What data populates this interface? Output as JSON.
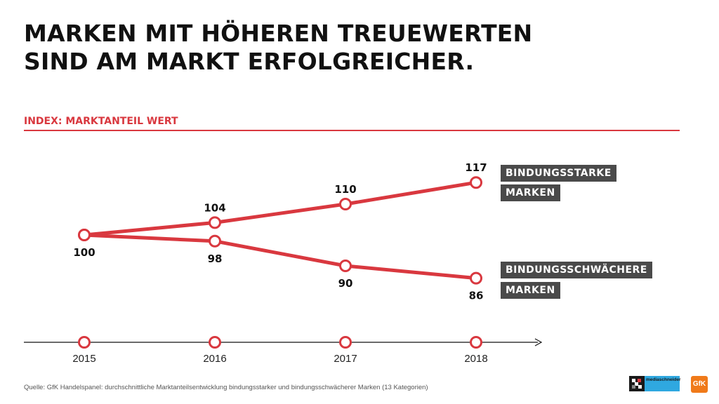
{
  "title": {
    "line1": "MARKEN MIT HÖHEREN TREUEWERTEN",
    "line2": "SIND AM MARKT ERFOLGREICHER."
  },
  "subtitle": "INDEX: MARKTANTEIL WERT",
  "colors": {
    "accent": "#d9383f",
    "legend_bg": "#4a4a4a",
    "axis": "#111111"
  },
  "chart_data": {
    "type": "line",
    "categories": [
      "2015",
      "2016",
      "2017",
      "2018"
    ],
    "series": [
      {
        "name": "BINDUNGSSTARKE MARKEN",
        "name_lines": [
          "BINDUNGSSTARKE",
          "MARKEN"
        ],
        "values": [
          100,
          104,
          110,
          117
        ],
        "labels": [
          "100",
          "104",
          "110",
          "117"
        ]
      },
      {
        "name": "BINDUNGSSCHWÄCHERE MARKEN",
        "name_lines": [
          "BINDUNGSSCHWÄCHERE",
          "MARKEN"
        ],
        "values": [
          100,
          98,
          90,
          86
        ],
        "labels": [
          "",
          "98",
          "90",
          "86"
        ]
      }
    ],
    "ylim": [
      80,
      120
    ],
    "grid": false,
    "legend_placement": "right"
  },
  "source": "Quelle: GfK Handelspanel: durchschnittliche Marktanteilsentwicklung bindungsstarker und bindungsschwächerer Marken (13 Kategorien)",
  "logos": {
    "mediaschneider": "mediaschneider",
    "gfk": "GfK"
  }
}
